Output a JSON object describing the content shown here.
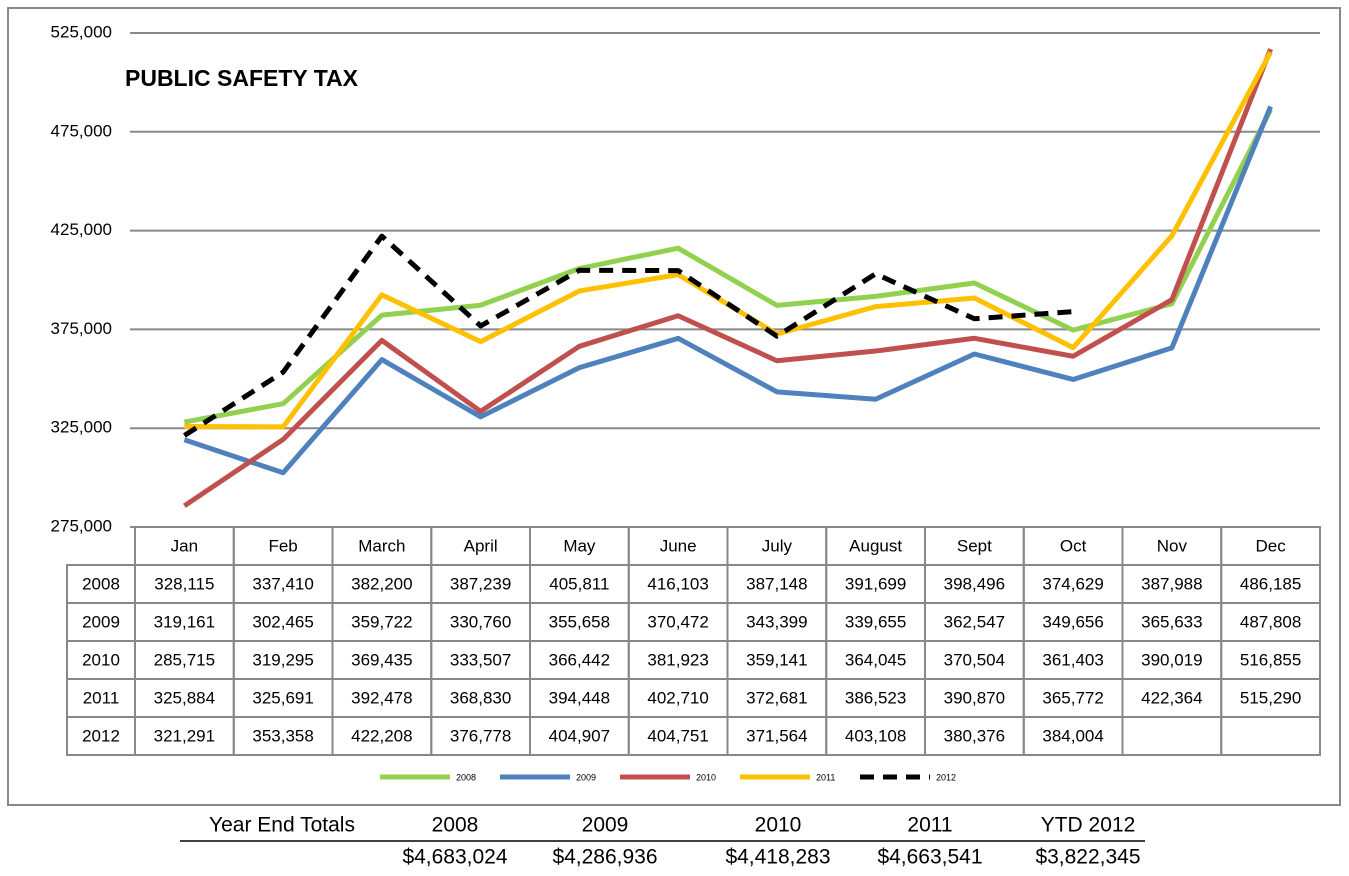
{
  "chart_data": {
    "type": "line",
    "title": "PUBLIC SAFETY TAX",
    "categories": [
      "Jan",
      "Feb",
      "March",
      "April",
      "May",
      "June",
      "July",
      "August",
      "Sept",
      "Oct",
      "Nov",
      "Dec"
    ],
    "ylim": [
      275000,
      525000
    ],
    "yticks": [
      {
        "value": 275000,
        "label": "275,000"
      },
      {
        "value": 325000,
        "label": "325,000"
      },
      {
        "value": 375000,
        "label": "375,000"
      },
      {
        "value": 425000,
        "label": "425,000"
      },
      {
        "value": 475000,
        "label": "475,000"
      },
      {
        "value": 525000,
        "label": "525,000"
      }
    ],
    "grid": true,
    "legend": "bottom",
    "series": [
      {
        "name": "2008",
        "color": "#92d050",
        "values": [
          328115,
          337410,
          382200,
          387239,
          405811,
          416103,
          387148,
          391699,
          398496,
          374629,
          387988,
          486185
        ],
        "value_labels": [
          "328,115",
          "337,410",
          "382,200",
          "387,239",
          "405,811",
          "416,103",
          "387,148",
          "391,699",
          "398,496",
          "374,629",
          "387,988",
          "486,185"
        ]
      },
      {
        "name": "2009",
        "color": "#4f81bd",
        "values": [
          319161,
          302465,
          359722,
          330760,
          355658,
          370472,
          343399,
          339655,
          362547,
          349656,
          365633,
          487808
        ],
        "value_labels": [
          "319,161",
          "302,465",
          "359,722",
          "330,760",
          "355,658",
          "370,472",
          "343,399",
          "339,655",
          "362,547",
          "349,656",
          "365,633",
          "487,808"
        ]
      },
      {
        "name": "2010",
        "color": "#c0504d",
        "values": [
          285715,
          319295,
          369435,
          333507,
          366442,
          381923,
          359141,
          364045,
          370504,
          361403,
          390019,
          516855
        ],
        "value_labels": [
          "285,715",
          "319,295",
          "369,435",
          "333,507",
          "366,442",
          "381,923",
          "359,141",
          "364,045",
          "370,504",
          "361,403",
          "390,019",
          "516,855"
        ]
      },
      {
        "name": "2011",
        "color": "#ffc000",
        "values": [
          325884,
          325691,
          392478,
          368830,
          394448,
          402710,
          372681,
          386523,
          390870,
          365772,
          422364,
          515290
        ],
        "value_labels": [
          "325,884",
          "325,691",
          "392,478",
          "368,830",
          "394,448",
          "402,710",
          "372,681",
          "386,523",
          "390,870",
          "365,772",
          "422,364",
          "515,290"
        ]
      },
      {
        "name": "2012",
        "color": "#000000",
        "dashed": true,
        "values": [
          321291,
          353358,
          422208,
          376778,
          404907,
          404751,
          371564,
          403108,
          380376,
          384004,
          null,
          null
        ],
        "value_labels": [
          "321,291",
          "353,358",
          "422,208",
          "376,778",
          "404,907",
          "404,751",
          "371,564",
          "403,108",
          "380,376",
          "384,004",
          null,
          null
        ]
      }
    ]
  },
  "totals": {
    "label": "Year End Totals",
    "columns": [
      "2008",
      "2009",
      "2010",
      "2011",
      "YTD 2012"
    ],
    "amounts": [
      "$4,683,024",
      "$4,286,936",
      "$4,418,283",
      "$4,663,541",
      "$3,822,345"
    ]
  }
}
